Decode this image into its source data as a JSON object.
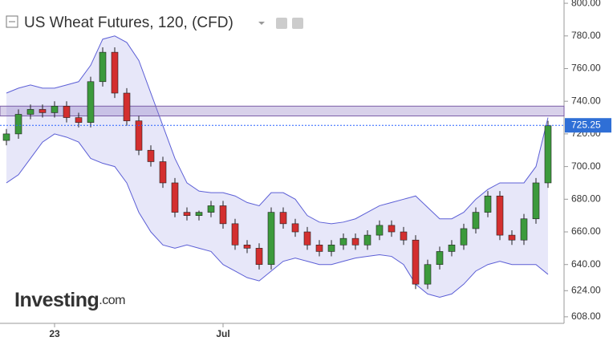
{
  "chart_data": {
    "type": "candlestick",
    "title": "US Wheat Futures, 120, (CFD)",
    "brand": "Investing",
    "brand_suffix": ".com",
    "categories": [
      null,
      null,
      null,
      null,
      "23",
      null,
      null,
      null,
      null,
      null,
      null,
      null,
      null,
      null,
      null,
      null,
      null,
      null,
      "Jul",
      null,
      null,
      null,
      null,
      null,
      null,
      null,
      null,
      null,
      null,
      null,
      null,
      null,
      null,
      null,
      null,
      null,
      null,
      null,
      null,
      null,
      null,
      null,
      null,
      null,
      null,
      null
    ],
    "open": [
      716,
      720,
      732,
      735,
      733,
      737,
      730,
      727,
      752,
      770,
      745,
      728,
      710,
      703,
      690,
      672,
      670,
      672,
      676,
      665,
      652,
      650,
      640,
      672,
      665,
      660,
      652,
      648,
      652,
      656,
      652,
      658,
      664,
      660,
      655,
      628,
      640,
      648,
      652,
      662,
      672,
      682,
      658,
      655,
      668,
      690
    ],
    "high": [
      723,
      735,
      738,
      738,
      740,
      740,
      733,
      755,
      773,
      773,
      748,
      731,
      713,
      706,
      693,
      675,
      673,
      679,
      679,
      668,
      655,
      653,
      675,
      675,
      668,
      663,
      655,
      655,
      659,
      659,
      661,
      667,
      667,
      663,
      658,
      643,
      651,
      655,
      665,
      675,
      685,
      685,
      661,
      671,
      693,
      728
    ],
    "low": [
      713,
      717,
      729,
      730,
      730,
      727,
      724,
      724,
      749,
      742,
      725,
      707,
      700,
      687,
      669,
      667,
      667,
      669,
      662,
      649,
      647,
      637,
      637,
      662,
      657,
      649,
      645,
      645,
      649,
      649,
      649,
      655,
      657,
      652,
      625,
      625,
      637,
      645,
      649,
      659,
      669,
      655,
      652,
      652,
      665,
      687
    ],
    "close": [
      720,
      732,
      735,
      733,
      737,
      730,
      727,
      752,
      770,
      745,
      728,
      710,
      703,
      690,
      672,
      670,
      672,
      676,
      665,
      652,
      650,
      640,
      672,
      665,
      660,
      652,
      648,
      652,
      656,
      652,
      658,
      664,
      660,
      655,
      628,
      640,
      648,
      652,
      662,
      672,
      682,
      658,
      655,
      668,
      690,
      725
    ],
    "band_upper": [
      745,
      748,
      750,
      748,
      748,
      750,
      752,
      762,
      778,
      780,
      776,
      765,
      745,
      725,
      705,
      690,
      685,
      684,
      684,
      682,
      678,
      676,
      684,
      684,
      680,
      670,
      666,
      665,
      666,
      668,
      672,
      676,
      678,
      680,
      682,
      675,
      668,
      668,
      672,
      680,
      686,
      690,
      690,
      690,
      700,
      730
    ],
    "band_lower": [
      690,
      695,
      705,
      715,
      720,
      718,
      715,
      705,
      702,
      700,
      690,
      672,
      660,
      652,
      650,
      652,
      650,
      648,
      640,
      636,
      632,
      630,
      636,
      642,
      644,
      642,
      640,
      640,
      642,
      644,
      645,
      646,
      645,
      640,
      628,
      622,
      620,
      622,
      628,
      636,
      640,
      642,
      640,
      640,
      640,
      634
    ],
    "zone": [
      731,
      737
    ],
    "last_price": 725.25,
    "up_color": "#3c9a3c",
    "down_color": "#d32f2f",
    "band_color": "#5c5fd6",
    "ylim": [
      604,
      802
    ],
    "yticks": [
      {
        "value": 800,
        "label": "800.00"
      },
      {
        "value": 780,
        "label": "780.00"
      },
      {
        "value": 760,
        "label": "760.00"
      },
      {
        "value": 740,
        "label": "740.00"
      },
      {
        "value": 720,
        "label": "720.00"
      },
      {
        "value": 700,
        "label": "700.00"
      },
      {
        "value": 680,
        "label": "680.00"
      },
      {
        "value": 660,
        "label": "660.00"
      },
      {
        "value": 640,
        "label": "640.00"
      },
      {
        "value": 624,
        "label": "624.00"
      },
      {
        "value": 608,
        "label": "608.00"
      }
    ]
  }
}
